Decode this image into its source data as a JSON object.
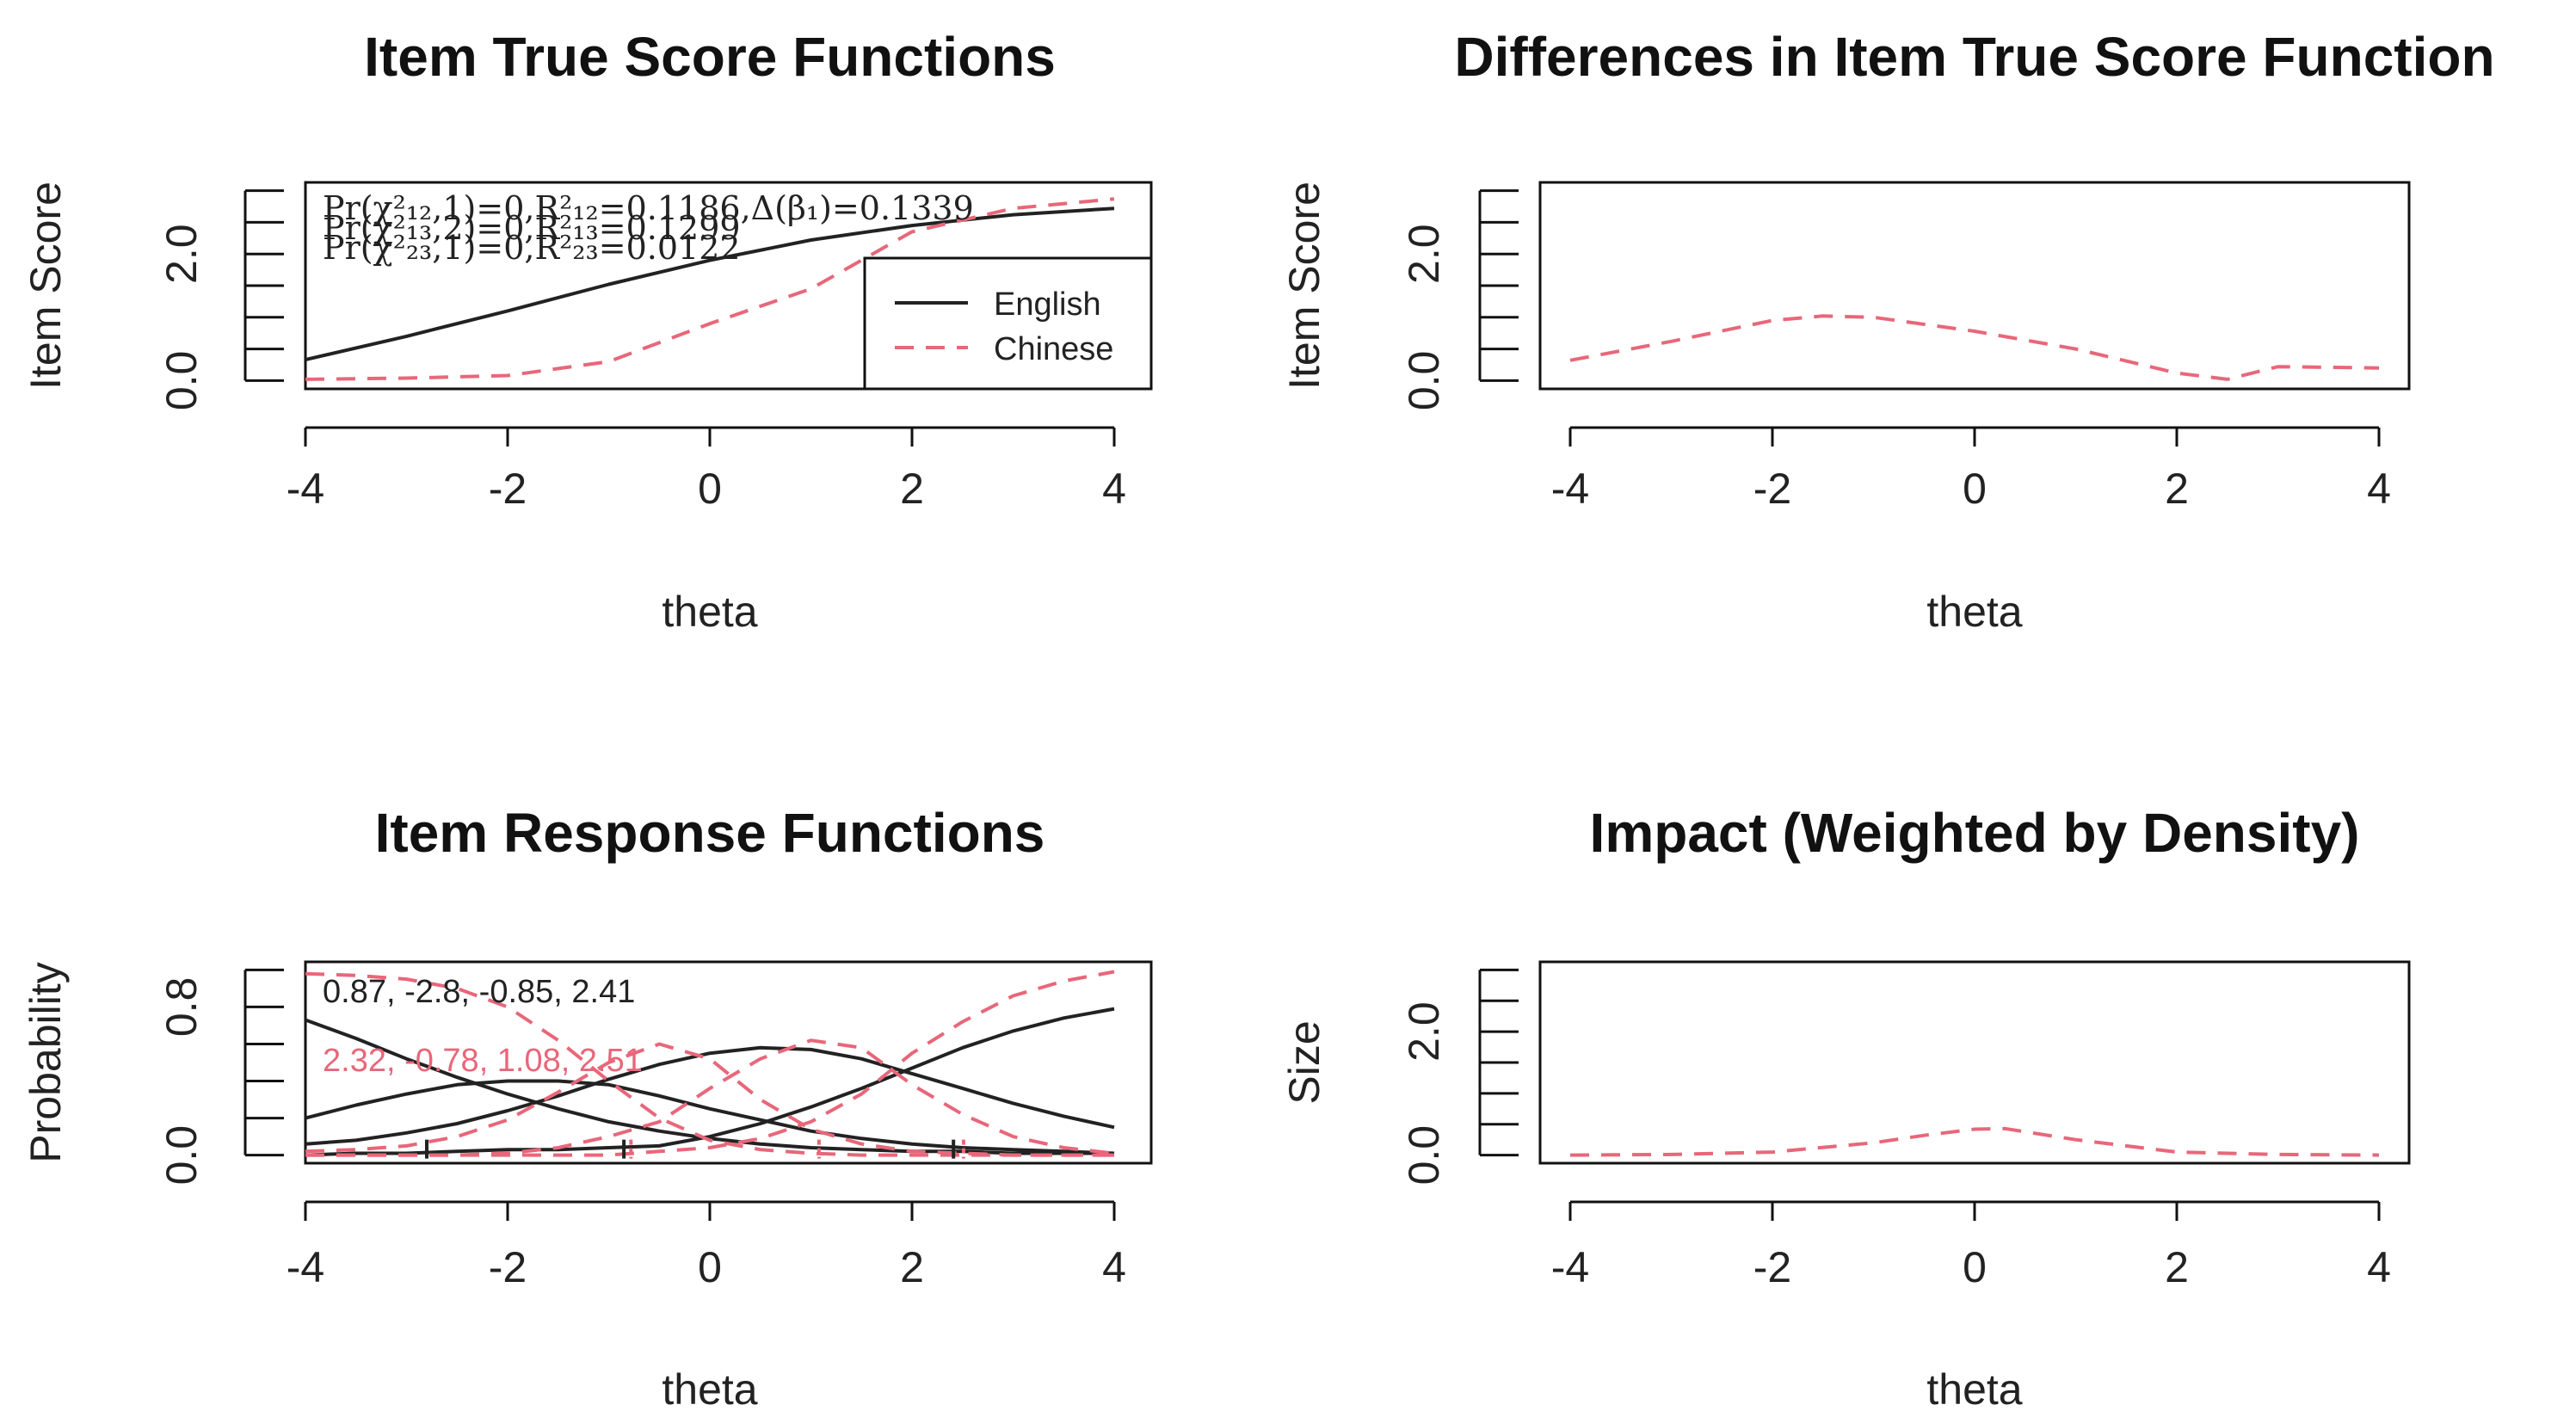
{
  "colors": {
    "english": "#222222",
    "chinese": "#e8677a",
    "axis": "#111111"
  },
  "chart_data": [
    {
      "type": "line",
      "title": "Item True Score Functions",
      "xlabel": "theta",
      "ylabel": "Item Score",
      "xlim": [
        -4,
        4
      ],
      "ylim": [
        0,
        3
      ],
      "xticks": [
        "-4",
        "-2",
        "0",
        "2",
        "4"
      ],
      "yticks": [
        {
          "value": 0,
          "label": "0.0"
        },
        {
          "value": 2,
          "label": "2.0"
        }
      ],
      "ytick_positions": [
        0,
        0.5,
        1,
        1.5,
        2,
        2.5,
        3
      ],
      "x": [
        -4,
        -3,
        -2,
        -1,
        0,
        1,
        2,
        3,
        4
      ],
      "series": [
        {
          "name": "English",
          "style": "solid",
          "values": [
            0.33,
            0.7,
            1.1,
            1.52,
            1.9,
            2.22,
            2.45,
            2.62,
            2.72
          ]
        },
        {
          "name": "Chinese",
          "style": "dashed",
          "values": [
            0.02,
            0.04,
            0.08,
            0.3,
            0.9,
            1.45,
            2.35,
            2.72,
            2.87
          ]
        }
      ],
      "annotations": [
        "Pr(χ²₁₂,1)=0,R²₁₂=0.1186,Δ(β₁)=0.1339",
        "Pr(χ²₁₃,2)=0,R²₁₃=0.1299",
        "Pr(χ²₂₃,1)=0,R²₂₃=0.0122"
      ],
      "legend": {
        "position": "bottom-right",
        "entries": [
          "English",
          "Chinese"
        ]
      }
    },
    {
      "type": "line",
      "title": "Differences in Item True Score Function",
      "xlabel": "theta",
      "ylabel": "Item Score",
      "xlim": [
        -4,
        4
      ],
      "ylim": [
        0,
        3
      ],
      "xticks": [
        "-4",
        "-2",
        "0",
        "2",
        "4"
      ],
      "yticks": [
        {
          "value": 0,
          "label": "0.0"
        },
        {
          "value": 2,
          "label": "2.0"
        }
      ],
      "ytick_positions": [
        0,
        0.5,
        1,
        1.5,
        2,
        2.5,
        3
      ],
      "x": [
        -4,
        -3,
        -2,
        -1.5,
        -1,
        0,
        1,
        2,
        2.5,
        3,
        4
      ],
      "series": [
        {
          "name": "Difference",
          "style": "dashed",
          "values": [
            0.32,
            0.62,
            0.95,
            1.02,
            1.0,
            0.78,
            0.5,
            0.12,
            0.02,
            0.22,
            0.2
          ]
        }
      ]
    },
    {
      "type": "line",
      "title": "Item Response Functions",
      "xlabel": "theta",
      "ylabel": "Probability",
      "xlim": [
        -4,
        4
      ],
      "ylim": [
        0,
        1
      ],
      "xticks": [
        "-4",
        "-2",
        "0",
        "2",
        "4"
      ],
      "yticks": [
        {
          "value": 0,
          "label": "0.0"
        },
        {
          "value": 0.8,
          "label": "0.8"
        }
      ],
      "ytick_positions": [
        0,
        0.2,
        0.4,
        0.6,
        0.8,
        1.0
      ],
      "x": [
        -4,
        -3.5,
        -3,
        -2.5,
        -2,
        -1.5,
        -1,
        -0.5,
        0,
        0.5,
        1,
        1.5,
        2,
        2.5,
        3,
        3.5,
        4
      ],
      "series": [
        {
          "name": "English P0",
          "group": "English",
          "style": "solid",
          "values": [
            0.73,
            0.63,
            0.52,
            0.42,
            0.33,
            0.25,
            0.18,
            0.13,
            0.09,
            0.06,
            0.04,
            0.03,
            0.02,
            0.02,
            0.01,
            0.01,
            0.01
          ]
        },
        {
          "name": "English P1",
          "group": "English",
          "style": "solid",
          "values": [
            0.2,
            0.27,
            0.33,
            0.38,
            0.4,
            0.4,
            0.38,
            0.32,
            0.25,
            0.19,
            0.13,
            0.09,
            0.06,
            0.04,
            0.03,
            0.02,
            0.01
          ]
        },
        {
          "name": "English P2",
          "group": "English",
          "style": "solid",
          "values": [
            0.06,
            0.08,
            0.12,
            0.17,
            0.24,
            0.32,
            0.41,
            0.49,
            0.55,
            0.58,
            0.57,
            0.52,
            0.44,
            0.36,
            0.28,
            0.21,
            0.15
          ]
        },
        {
          "name": "English P3",
          "group": "English",
          "style": "solid",
          "values": [
            0.0,
            0.01,
            0.01,
            0.02,
            0.03,
            0.03,
            0.04,
            0.05,
            0.1,
            0.17,
            0.26,
            0.36,
            0.47,
            0.58,
            0.67,
            0.74,
            0.79
          ]
        },
        {
          "name": "Chinese P0",
          "group": "Chinese",
          "style": "dashed",
          "values": [
            0.98,
            0.97,
            0.95,
            0.9,
            0.8,
            0.62,
            0.4,
            0.2,
            0.08,
            0.03,
            0.01,
            0.0,
            0.0,
            0.0,
            0.0,
            0.0,
            0.0
          ]
        },
        {
          "name": "Chinese P1",
          "group": "Chinese",
          "style": "dashed",
          "values": [
            0.02,
            0.03,
            0.05,
            0.1,
            0.19,
            0.34,
            0.5,
            0.6,
            0.52,
            0.3,
            0.14,
            0.06,
            0.02,
            0.01,
            0.0,
            0.0,
            0.0
          ]
        },
        {
          "name": "Chinese P2",
          "group": "Chinese",
          "style": "dashed",
          "values": [
            0.0,
            0.0,
            0.0,
            0.0,
            0.01,
            0.04,
            0.1,
            0.18,
            0.36,
            0.52,
            0.62,
            0.58,
            0.38,
            0.22,
            0.1,
            0.04,
            0.01
          ]
        },
        {
          "name": "Chinese P3",
          "group": "Chinese",
          "style": "dashed",
          "values": [
            0.0,
            0.0,
            0.0,
            0.0,
            0.0,
            0.0,
            0.0,
            0.02,
            0.04,
            0.09,
            0.18,
            0.33,
            0.55,
            0.72,
            0.86,
            0.94,
            0.99
          ]
        }
      ],
      "thresholds": {
        "English": [
          -2.8,
          -0.85,
          2.41
        ],
        "Chinese": [
          -0.78,
          1.08,
          2.51
        ]
      },
      "annotations": [
        {
          "text": "0.87, -2.8, -0.85, 2.41",
          "group": "English"
        },
        {
          "text": "2.32, -0.78, 1.08, 2.51",
          "group": "Chinese"
        }
      ]
    },
    {
      "type": "line",
      "title": "Impact (Weighted by Density)",
      "xlabel": "theta",
      "ylabel": "Size",
      "xlim": [
        -4,
        4
      ],
      "ylim": [
        0,
        3
      ],
      "xticks": [
        "-4",
        "-2",
        "0",
        "2",
        "4"
      ],
      "yticks": [
        {
          "value": 0,
          "label": "0.0"
        },
        {
          "value": 2,
          "label": "2.0"
        }
      ],
      "ytick_positions": [
        0,
        0.5,
        1,
        1.5,
        2,
        2.5,
        3
      ],
      "x": [
        -4,
        -3,
        -2,
        -1,
        -0.5,
        0,
        0.3,
        1,
        2,
        3,
        4
      ],
      "series": [
        {
          "name": "Impact",
          "style": "dashed",
          "values": [
            0.0,
            0.01,
            0.05,
            0.2,
            0.32,
            0.42,
            0.43,
            0.25,
            0.05,
            0.01,
            0.0
          ]
        }
      ]
    }
  ]
}
